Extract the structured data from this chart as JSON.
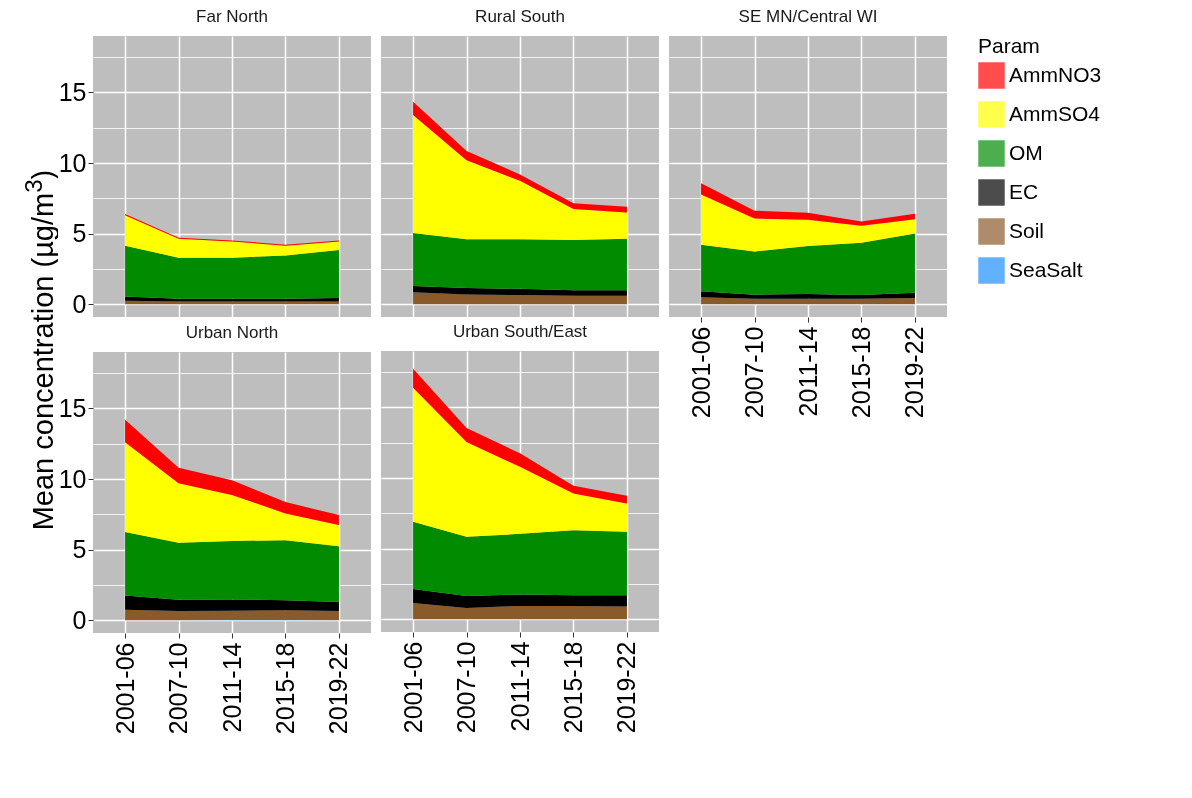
{
  "chart_data": [
    {
      "type": "area",
      "title": "Far North",
      "ylabel": "Mean concentration (µg/m$^{3}$)",
      "legend_title": "Param",
      "legend": "right",
      "stacked": true,
      "grid": true,
      "tick_labels": "y",
      "categories": [
        "2001-06",
        "2007-10",
        "2011-14",
        "2015-18",
        "2019-22"
      ],
      "ylim": [
        -0.9,
        19
      ],
      "yticks": [
        0,
        {
          "value": 2.5,
          "label": null
        },
        5,
        {
          "value": 7.5,
          "label": null
        },
        10,
        {
          "value": 12.5,
          "label": null
        },
        15,
        {
          "value": 17.5,
          "label": null
        }
      ],
      "series": [
        {
          "name": "Soil",
          "color": "#8b5a2b",
          "values": [
            0.25,
            0.2,
            0.2,
            0.2,
            0.2
          ]
        },
        {
          "name": "EC",
          "color": "#000000",
          "values": [
            0.3,
            0.2,
            0.2,
            0.2,
            0.25
          ]
        },
        {
          "name": "OM",
          "color": "#008b00",
          "values": [
            3.6,
            2.9,
            2.9,
            3.05,
            3.4
          ]
        },
        {
          "name": "AmmSO4",
          "color": "#ffff00",
          "values": [
            2.15,
            1.35,
            1.15,
            0.7,
            0.6
          ]
        },
        {
          "name": "AmmNO3",
          "color": "#ff0000",
          "values": [
            0.1,
            0.07,
            0.07,
            0.07,
            0.07
          ]
        }
      ]
    },
    {
      "type": "area",
      "title": "Rural South",
      "stacked": true,
      "grid": true,
      "tick_labels": false,
      "categories": [
        "2001-06",
        "2007-10",
        "2011-14",
        "2015-18",
        "2019-22"
      ],
      "ylim": [
        -0.9,
        19
      ],
      "yticks": [
        0,
        {
          "value": 2.5,
          "label": null
        },
        5,
        {
          "value": 7.5,
          "label": null
        },
        10,
        {
          "value": 12.5,
          "label": null
        },
        15,
        {
          "value": 17.5,
          "label": null
        }
      ],
      "series": [
        {
          "name": "Soil",
          "color": "#8b5a2b",
          "values": [
            0.85,
            0.7,
            0.65,
            0.6,
            0.6
          ]
        },
        {
          "name": "EC",
          "color": "#000000",
          "values": [
            0.45,
            0.45,
            0.45,
            0.4,
            0.4
          ]
        },
        {
          "name": "OM",
          "color": "#008b00",
          "values": [
            3.75,
            3.45,
            3.5,
            3.55,
            3.65
          ]
        },
        {
          "name": "AmmSO4",
          "color": "#ffff00",
          "values": [
            8.35,
            5.6,
            4.15,
            2.2,
            1.85
          ]
        },
        {
          "name": "AmmNO3",
          "color": "#ff0000",
          "values": [
            0.95,
            0.65,
            0.45,
            0.4,
            0.4
          ]
        }
      ]
    },
    {
      "type": "area",
      "title": "SE MN/Central WI",
      "stacked": true,
      "grid": true,
      "tick_labels": "x",
      "categories": [
        "2001-06",
        "2007-10",
        "2011-14",
        "2015-18",
        "2019-22"
      ],
      "ylim": [
        -0.9,
        19
      ],
      "yticks": [
        0,
        {
          "value": 2.5,
          "label": null
        },
        5,
        {
          "value": 7.5,
          "label": null
        },
        10,
        {
          "value": 12.5,
          "label": null
        },
        15,
        {
          "value": 17.5,
          "label": null
        }
      ],
      "series": [
        {
          "name": "Soil",
          "color": "#8b5a2b",
          "values": [
            0.5,
            0.4,
            0.4,
            0.4,
            0.45
          ]
        },
        {
          "name": "EC",
          "color": "#000000",
          "values": [
            0.42,
            0.28,
            0.33,
            0.26,
            0.37
          ]
        },
        {
          "name": "OM",
          "color": "#008b00",
          "values": [
            3.3,
            3.05,
            3.4,
            3.7,
            4.2
          ]
        },
        {
          "name": "AmmSO4",
          "color": "#ffff00",
          "values": [
            3.55,
            2.35,
            1.85,
            1.2,
            1.0
          ]
        },
        {
          "name": "AmmNO3",
          "color": "#ff0000",
          "values": [
            0.8,
            0.55,
            0.5,
            0.3,
            0.4
          ]
        }
      ]
    },
    {
      "type": "area",
      "title": "Urban North",
      "stacked": true,
      "grid": true,
      "categories": [
        "2001-06",
        "2007-10",
        "2011-14",
        "2015-18",
        "2019-22"
      ],
      "ylim": [
        -0.9,
        19
      ],
      "yticks": [
        0,
        {
          "value": 2.5,
          "label": null
        },
        5,
        {
          "value": 7.5,
          "label": null
        },
        10,
        {
          "value": 12.5,
          "label": null
        },
        15,
        {
          "value": 17.5,
          "label": null
        }
      ],
      "series": [
        {
          "name": "SeaSalt",
          "color": "#1e90ff",
          "values": [
            0,
            0,
            0.02,
            0.02,
            0
          ]
        },
        {
          "name": "Soil",
          "color": "#8b5a2b",
          "values": [
            0.75,
            0.65,
            0.65,
            0.7,
            0.65
          ]
        },
        {
          "name": "EC",
          "color": "#000000",
          "values": [
            1.0,
            0.8,
            0.8,
            0.7,
            0.65
          ]
        },
        {
          "name": "OM",
          "color": "#008b00",
          "values": [
            4.5,
            4.05,
            4.15,
            4.25,
            3.95
          ]
        },
        {
          "name": "AmmSO4",
          "color": "#ffff00",
          "values": [
            6.35,
            4.2,
            3.25,
            1.9,
            1.5
          ]
        },
        {
          "name": "AmmNO3",
          "color": "#ff0000",
          "values": [
            1.6,
            1.1,
            1.05,
            0.8,
            0.7
          ]
        }
      ]
    },
    {
      "type": "area",
      "title": "Urban South/East",
      "stacked": true,
      "grid": true,
      "tick_labels": "x",
      "categories": [
        "2001-06",
        "2007-10",
        "2011-14",
        "2015-18",
        "2019-22"
      ],
      "ylim": [
        -0.9,
        19
      ],
      "yticks": [
        0,
        {
          "value": 2.5,
          "label": null
        },
        5,
        {
          "value": 7.5,
          "label": null
        },
        10,
        {
          "value": 12.5,
          "label": null
        },
        15,
        {
          "value": 17.5,
          "label": null
        }
      ],
      "series": [
        {
          "name": "Soil",
          "color": "#8b5a2b",
          "values": [
            1.15,
            0.8,
            0.95,
            0.95,
            0.9
          ]
        },
        {
          "name": "EC",
          "color": "#000000",
          "values": [
            1.0,
            0.85,
            0.8,
            0.75,
            0.8
          ]
        },
        {
          "name": "OM",
          "color": "#008b00",
          "values": [
            4.75,
            4.2,
            4.3,
            4.6,
            4.5
          ]
        },
        {
          "name": "AmmSO4",
          "color": "#ffff00",
          "values": [
            9.5,
            6.7,
            4.75,
            2.6,
            2.0
          ]
        },
        {
          "name": "AmmNO3",
          "color": "#ff0000",
          "values": [
            1.35,
            1.0,
            0.95,
            0.55,
            0.55
          ]
        }
      ]
    }
  ]
}
